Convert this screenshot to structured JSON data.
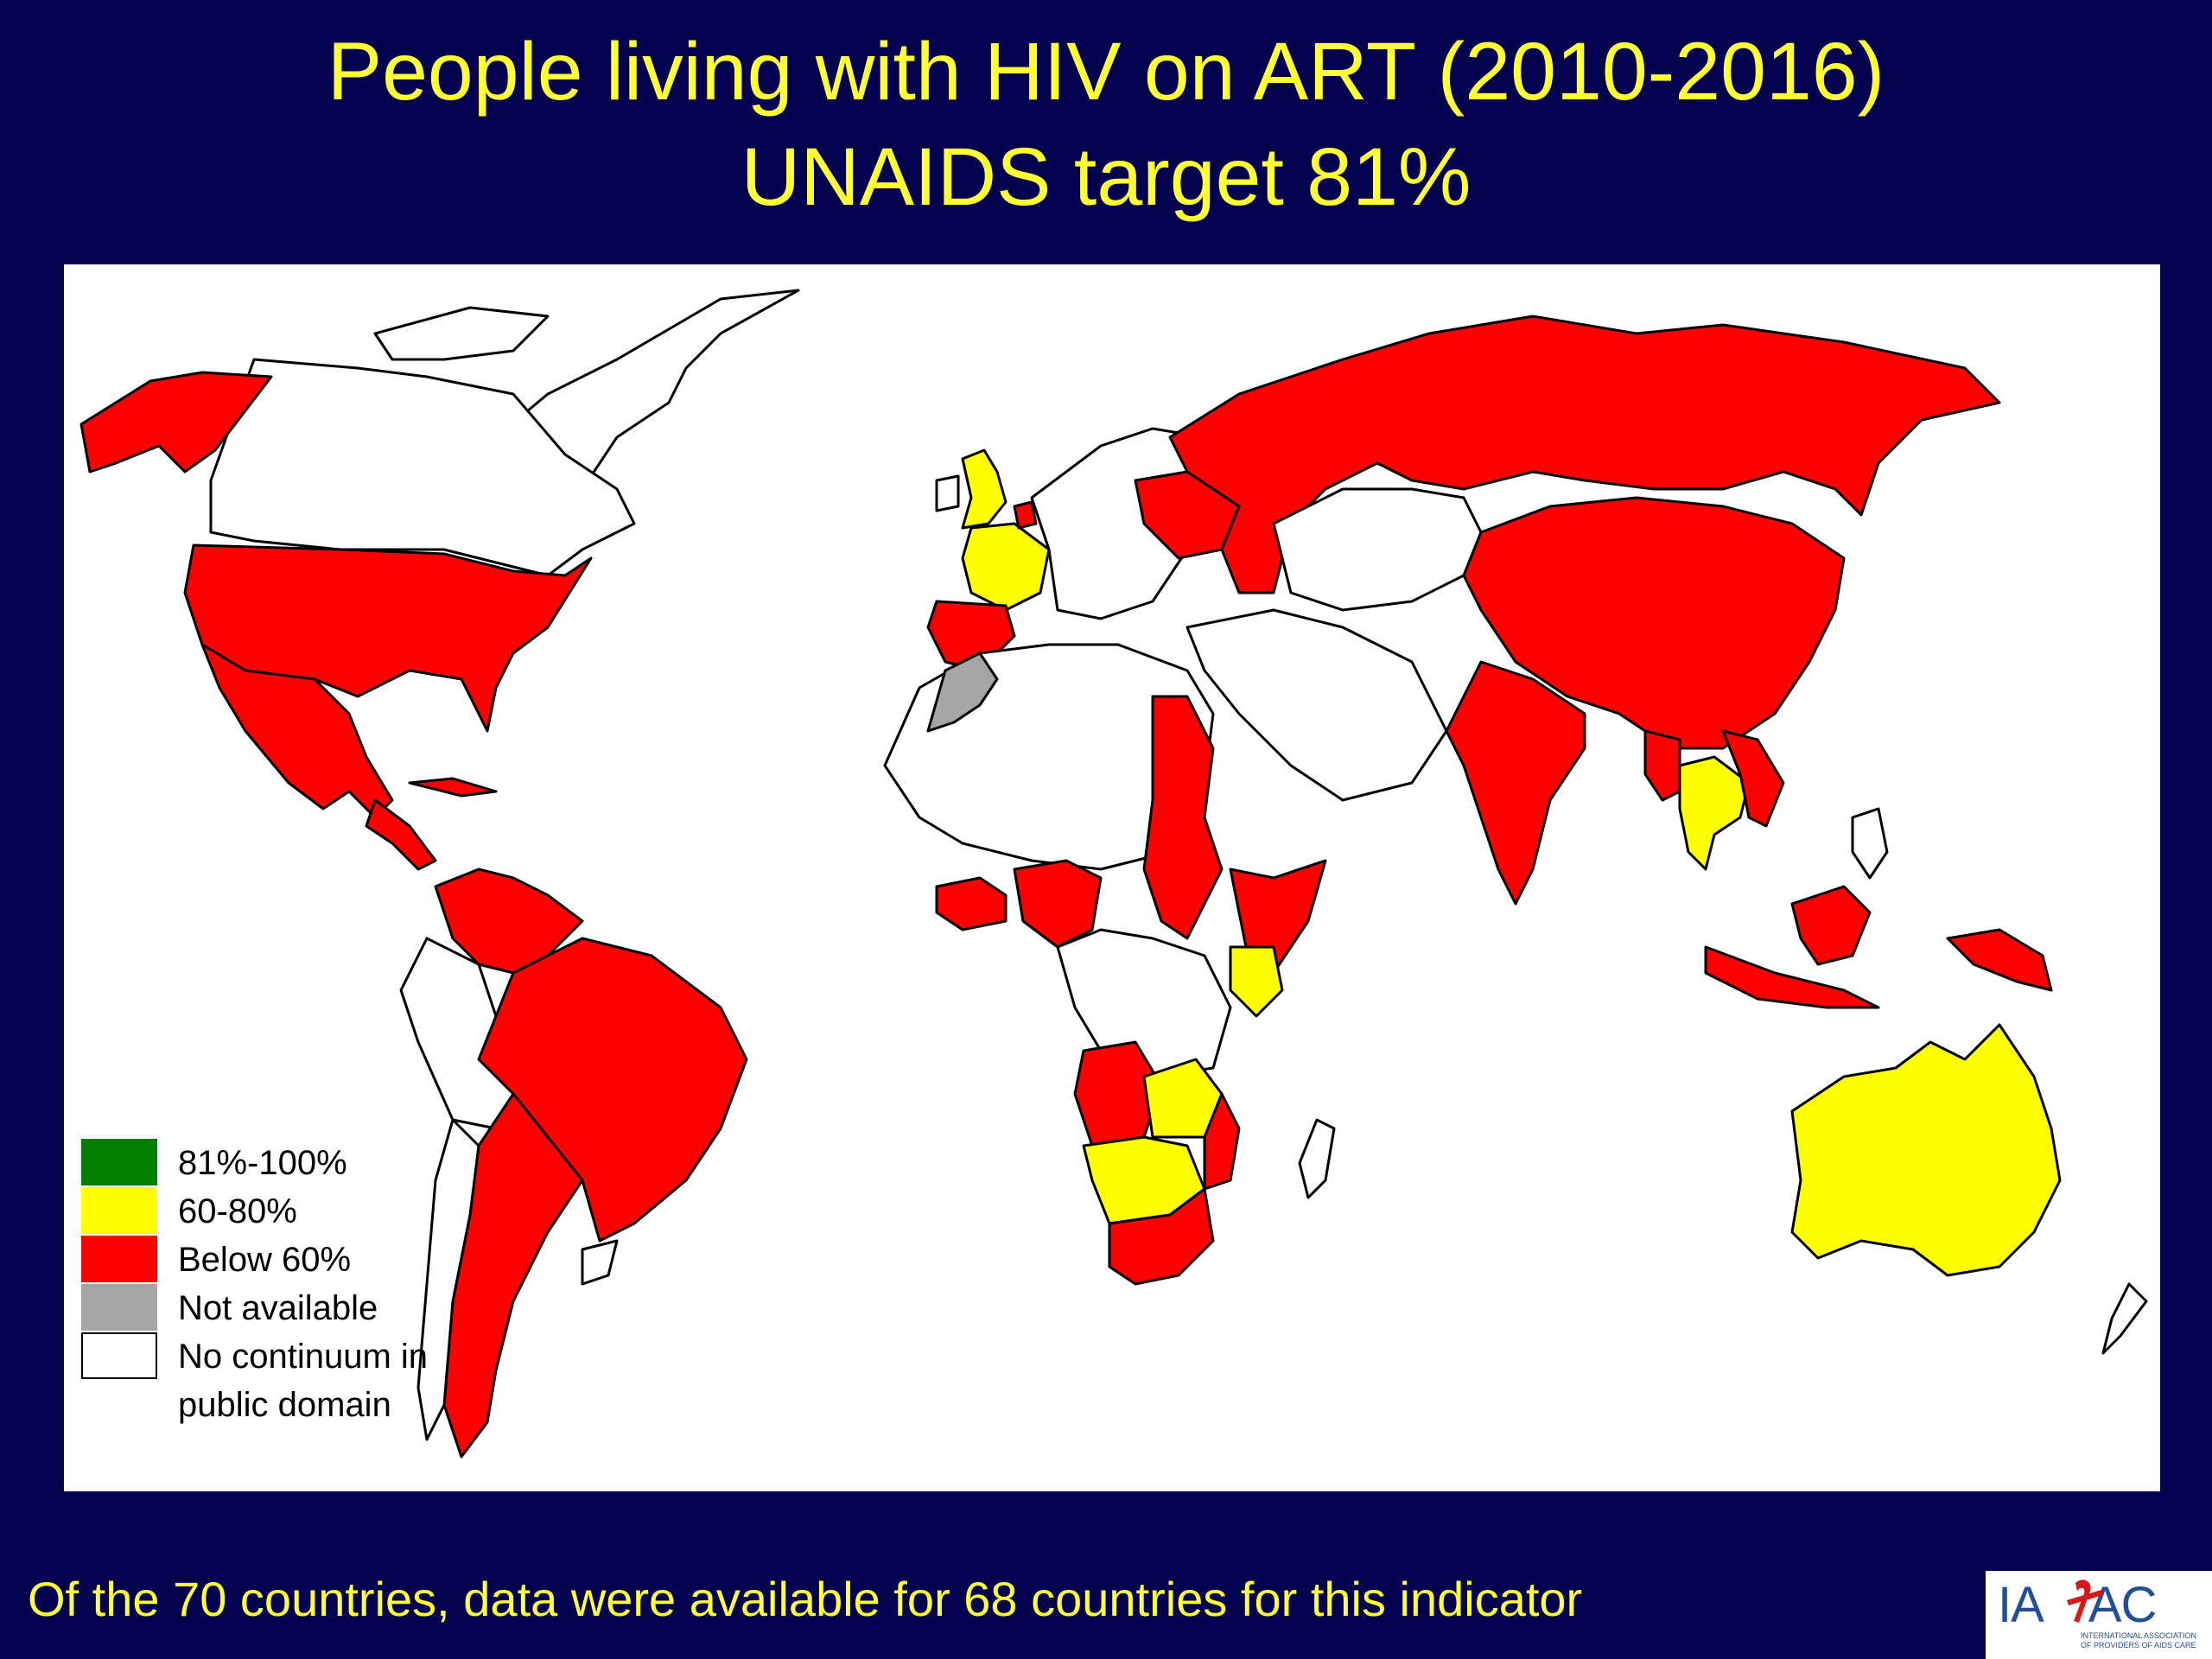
{
  "title": {
    "line1": "People living with HIV on ART (2010-2016)",
    "line2": "UNAIDS target 81%"
  },
  "legend": [
    {
      "label": "81%-100%",
      "color": "#008000"
    },
    {
      "label": "60-80%",
      "color": "#ffff00"
    },
    {
      "label": "Below 60%",
      "color": "#ff0000"
    },
    {
      "label": "Not available",
      "color": "#a6a6a6"
    },
    {
      "label": "No continuum in",
      "label2": "public domain",
      "color": "#ffffff"
    }
  ],
  "map": {
    "category_colors": {
      "target_met": "#008000",
      "between_60_80": "#ffff00",
      "below_60": "#ff0000",
      "not_available": "#a6a6a6",
      "no_data": "#ffffff"
    }
  },
  "footer": {
    "note": "Of the 70 countries, data were available for 68 countries for this indicator"
  },
  "logo": {
    "text_left": "IA",
    "text_right": "AC",
    "subtitle": "INTERNATIONAL ASSOCIATION OF PROVIDERS OF AIDS CARE"
  }
}
